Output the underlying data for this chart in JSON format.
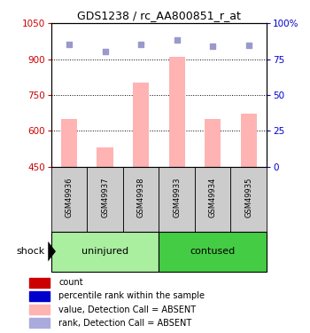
{
  "title": "GDS1238 / rc_AA800851_r_at",
  "samples": [
    "GSM49936",
    "GSM49937",
    "GSM49938",
    "GSM49933",
    "GSM49934",
    "GSM49935"
  ],
  "bar_values": [
    650,
    530,
    800,
    910,
    650,
    670
  ],
  "dot_values": [
    960,
    930,
    960,
    980,
    955,
    957
  ],
  "ylim_left": [
    450,
    1050
  ],
  "ylim_right": [
    0,
    100
  ],
  "yticks_left": [
    450,
    600,
    750,
    900,
    1050
  ],
  "yticks_right": [
    0,
    25,
    50,
    75,
    100
  ],
  "bar_color": "#ffb3b3",
  "dot_color": "#9999cc",
  "group_colors": {
    "uninjured": "#aaeea0",
    "contused": "#44cc44"
  },
  "ylabel_left_color": "#cc0000",
  "ylabel_right_color": "#0000cc",
  "legend_squares": [
    "#cc0000",
    "#0000cc",
    "#ffb3b3",
    "#aaaadd"
  ],
  "legend_labels": [
    "count",
    "percentile rank within the sample",
    "value, Detection Call = ABSENT",
    "rank, Detection Call = ABSENT"
  ],
  "shock_label": "shock"
}
